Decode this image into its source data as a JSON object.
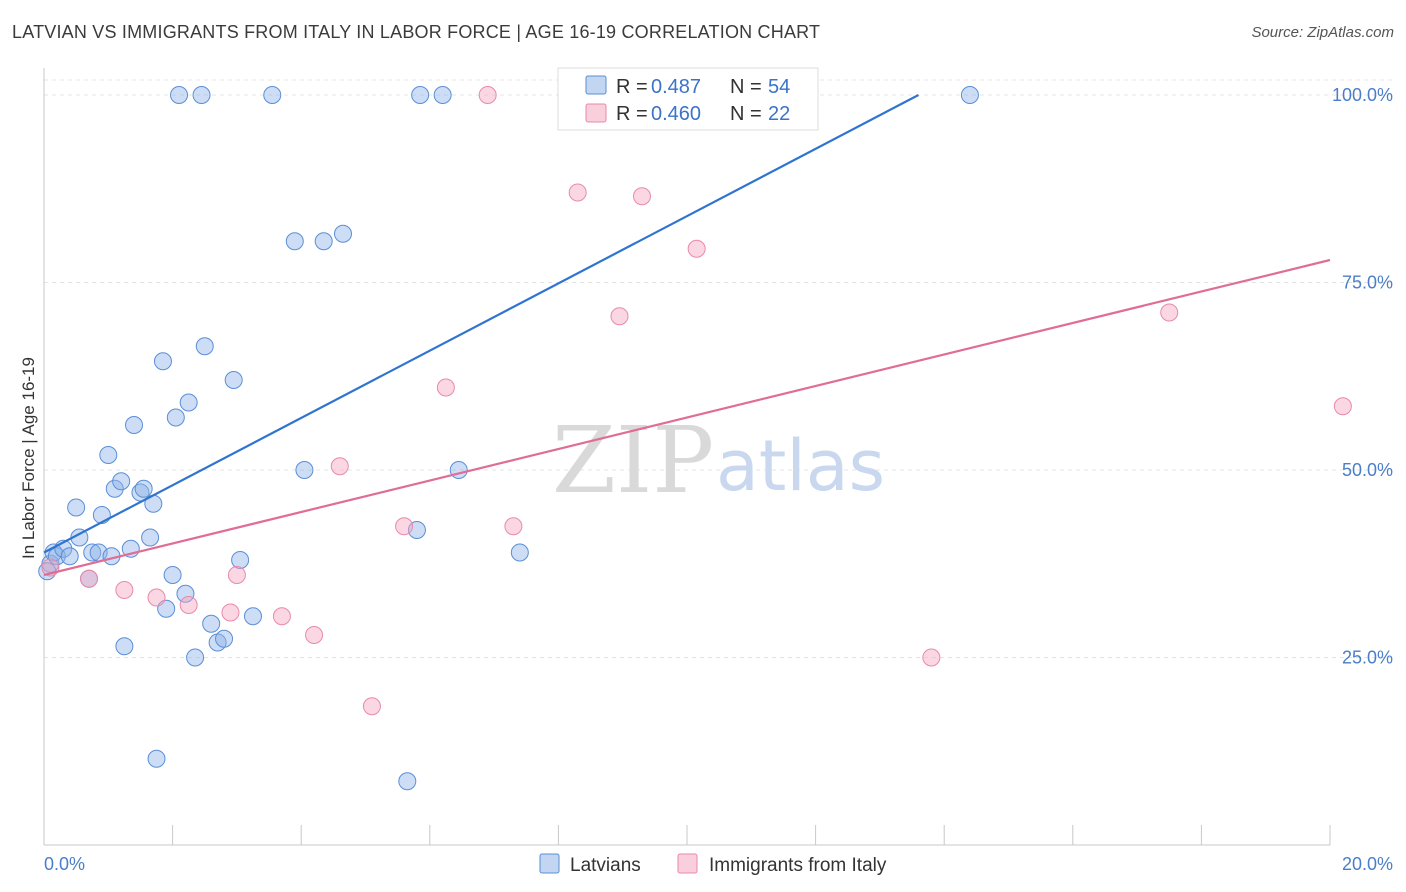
{
  "title": "LATVIAN VS IMMIGRANTS FROM ITALY IN LABOR FORCE | AGE 16-19 CORRELATION CHART",
  "source": "Source: ZipAtlas.com",
  "watermark": {
    "zip": "ZIP",
    "atlas": "atlas"
  },
  "chart_data": {
    "type": "scatter",
    "title": "LATVIAN VS IMMIGRANTS FROM ITALY IN LABOR FORCE | AGE 16-19 CORRELATION CHART",
    "xlabel": "",
    "ylabel": "In Labor Force | Age 16-19",
    "xlim": [
      0,
      20
    ],
    "ylim": [
      0,
      102
    ],
    "x_tick_labels": [
      "0.0%",
      "20.0%"
    ],
    "y_ticks": [
      25,
      50,
      75,
      100
    ],
    "y_tick_labels": [
      "25.0%",
      "50.0%",
      "75.0%",
      "100.0%"
    ],
    "grid": true,
    "legend": [
      {
        "name": "Latvians",
        "r_label": "R =",
        "r": "0.487",
        "n_label": "N =",
        "n": "54",
        "color": "#8fb4e8"
      },
      {
        "name": "Immigrants from Italy",
        "r_label": "R =",
        "r": "0.460",
        "n_label": "N =",
        "n": "22",
        "color": "#f4a7c0"
      }
    ],
    "series": [
      {
        "name": "Latvians",
        "color": "#8fb4e8",
        "stroke": "#5b8fd6",
        "trend": {
          "x": [
            0,
            13.6
          ],
          "y": [
            39,
            100
          ],
          "color": "#2f74d0"
        },
        "points": [
          [
            0.1,
            37.5
          ],
          [
            0.15,
            39
          ],
          [
            0.2,
            38.5
          ],
          [
            0.3,
            39.5
          ],
          [
            0.4,
            38.5
          ],
          [
            0.55,
            41
          ],
          [
            0.5,
            45
          ],
          [
            0.7,
            35.5
          ],
          [
            0.75,
            39
          ],
          [
            0.85,
            39
          ],
          [
            0.9,
            44
          ],
          [
            1.0,
            52
          ],
          [
            1.05,
            38.5
          ],
          [
            1.1,
            47.5
          ],
          [
            1.2,
            48.5
          ],
          [
            1.25,
            26.5
          ],
          [
            1.35,
            39.5
          ],
          [
            1.4,
            56
          ],
          [
            1.5,
            47
          ],
          [
            1.55,
            47.5
          ],
          [
            1.65,
            41
          ],
          [
            1.7,
            45.5
          ],
          [
            1.75,
            11.5
          ],
          [
            1.85,
            64.5
          ],
          [
            1.9,
            31.5
          ],
          [
            2.0,
            36
          ],
          [
            2.05,
            57
          ],
          [
            2.1,
            100
          ],
          [
            2.2,
            33.5
          ],
          [
            2.25,
            59
          ],
          [
            2.35,
            25
          ],
          [
            2.45,
            100
          ],
          [
            2.5,
            66.5
          ],
          [
            2.6,
            29.5
          ],
          [
            2.7,
            27
          ],
          [
            2.8,
            27.5
          ],
          [
            2.95,
            62
          ],
          [
            3.05,
            38
          ],
          [
            3.25,
            30.5
          ],
          [
            3.55,
            100
          ],
          [
            3.9,
            80.5
          ],
          [
            4.05,
            50
          ],
          [
            4.35,
            80.5
          ],
          [
            4.65,
            81.5
          ],
          [
            5.65,
            8.5
          ],
          [
            5.8,
            42
          ],
          [
            5.85,
            100
          ],
          [
            6.2,
            100
          ],
          [
            6.45,
            50
          ],
          [
            7.4,
            39
          ],
          [
            9.0,
            100
          ],
          [
            9.5,
            100
          ],
          [
            14.4,
            100
          ],
          [
            0.05,
            36.5
          ]
        ]
      },
      {
        "name": "Immigrants from Italy",
        "color": "#f4a7c0",
        "stroke": "#e98aab",
        "trend": {
          "x": [
            0,
            20
          ],
          "y": [
            36,
            78
          ],
          "color": "#e06d97"
        },
        "points": [
          [
            0.1,
            37
          ],
          [
            0.7,
            35.5
          ],
          [
            1.25,
            34
          ],
          [
            1.75,
            33
          ],
          [
            2.25,
            32
          ],
          [
            2.9,
            31
          ],
          [
            3.0,
            36
          ],
          [
            3.7,
            30.5
          ],
          [
            4.2,
            28
          ],
          [
            4.6,
            50.5
          ],
          [
            5.1,
            18.5
          ],
          [
            5.6,
            42.5
          ],
          [
            6.25,
            61
          ],
          [
            6.9,
            100
          ],
          [
            7.3,
            42.5
          ],
          [
            8.3,
            87
          ],
          [
            8.95,
            70.5
          ],
          [
            9.3,
            86.5
          ],
          [
            10.15,
            79.5
          ],
          [
            13.8,
            25
          ],
          [
            17.5,
            71
          ],
          [
            20.2,
            58.5
          ]
        ]
      }
    ]
  }
}
